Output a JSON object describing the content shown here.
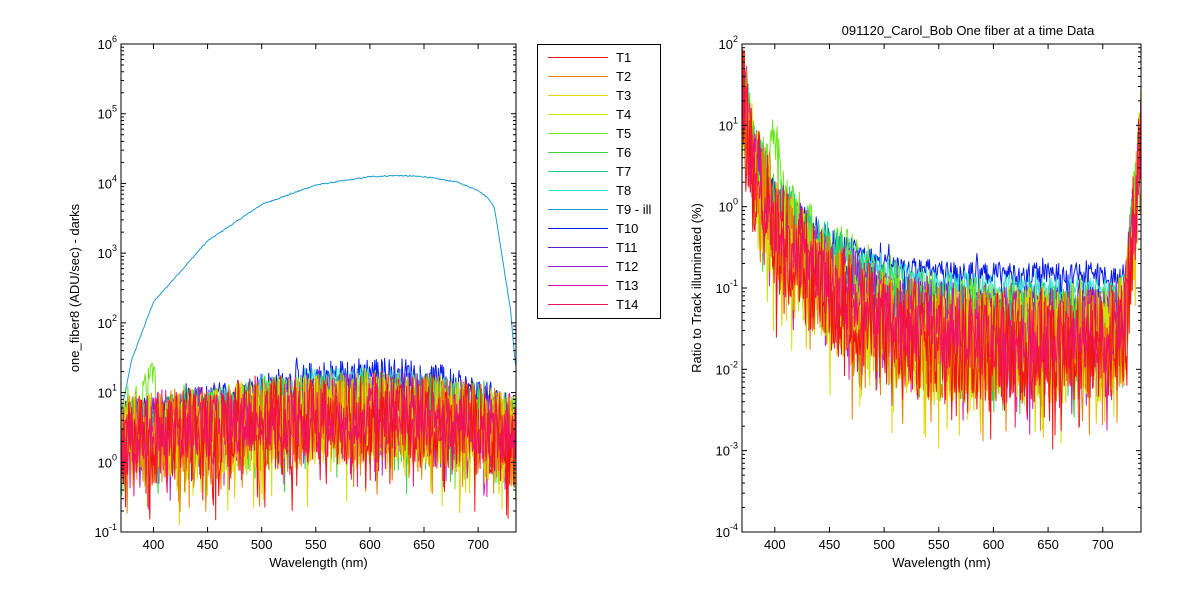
{
  "figure_title": "091120_Carol_Bob  One fiber at a time Data",
  "chart_data": [
    {
      "type": "line",
      "title": "",
      "xlabel": "Wavelength (nm)",
      "ylabel": "one_fiber8  (ADU/sec) - darks",
      "xlim": [
        370,
        735
      ],
      "ylim": [
        0.1,
        1000000
      ],
      "yscale": "log",
      "grid": false,
      "x_ticks": [
        400,
        450,
        500,
        550,
        600,
        650,
        700
      ],
      "y_tick_exponents": [
        -1,
        0,
        1,
        2,
        3,
        4,
        5,
        6
      ],
      "y_tick_base": "10",
      "legend": {
        "placement": "outside-right",
        "entries": [
          "T1",
          "T2",
          "T3",
          "T4",
          "T5",
          "T6",
          "T7",
          "T8",
          "T9 - ill",
          "T10",
          "T11",
          "T12",
          "T13",
          "T14"
        ]
      },
      "series": [
        {
          "name": "T9 - ill",
          "color": "#1f9bd0",
          "kind": "curve",
          "x": [
            370,
            380,
            400,
            450,
            500,
            550,
            600,
            625,
            650,
            680,
            700,
            710,
            715,
            720,
            730,
            735
          ],
          "values": [
            5,
            30,
            200,
            1500,
            5000,
            9500,
            12500,
            13000,
            12500,
            10500,
            8000,
            6000,
            4500,
            1500,
            150,
            20
          ]
        },
        {
          "name": "T10",
          "color": "#0a1ee6",
          "kind": "band",
          "x": [
            370,
            400,
            450,
            500,
            550,
            600,
            650,
            700,
            735
          ],
          "values": [
            5,
            5.5,
            8,
            12,
            17,
            20,
            18,
            10,
            5
          ],
          "spread": 0.5
        },
        {
          "name": "T8",
          "color": "#33e0d0",
          "kind": "band",
          "x": [
            370,
            400,
            450,
            500,
            550,
            600,
            650,
            700,
            735
          ],
          "values": [
            4,
            4.5,
            6.5,
            9.5,
            13,
            14,
            12,
            7,
            3
          ],
          "spread": 0.5
        },
        {
          "name": "T11",
          "color": "#5a1ed2",
          "kind": "band",
          "x": [
            370,
            400,
            450,
            500,
            550,
            600,
            650,
            700,
            735
          ],
          "values": [
            3,
            3.5,
            5,
            7,
            9,
            10,
            9,
            5,
            3
          ],
          "spread": 0.7
        },
        {
          "name": "T5",
          "color": "#6ee61e",
          "kind": "band",
          "x": [
            370,
            395,
            398,
            401,
            405,
            450,
            500,
            550,
            600,
            650,
            700,
            735
          ],
          "values": [
            3,
            12,
            60,
            15,
            4,
            5,
            6,
            7,
            7,
            6,
            4,
            2.5
          ],
          "spread": 0.9
        },
        {
          "name": "T7",
          "color": "#1ed282",
          "kind": "band",
          "x": [
            370,
            400,
            450,
            500,
            550,
            600,
            650,
            700,
            735
          ],
          "values": [
            3,
            3.5,
            4.5,
            6,
            7,
            8,
            7,
            5,
            3
          ],
          "spread": 0.9
        },
        {
          "name": "T12",
          "color": "#a01ed2",
          "kind": "band",
          "x": [
            370,
            400,
            450,
            500,
            550,
            600,
            650,
            700,
            735
          ],
          "values": [
            3,
            3,
            4,
            5,
            6,
            6.5,
            6,
            4,
            2.5
          ],
          "spread": 1.1
        },
        {
          "name": "T6",
          "color": "#3cd23c",
          "kind": "band",
          "x": [
            370,
            400,
            450,
            500,
            550,
            600,
            650,
            700,
            735
          ],
          "values": [
            2.5,
            2.8,
            3.5,
            4.5,
            5.5,
            6,
            5.5,
            4,
            2.5
          ],
          "spread": 1.2
        },
        {
          "name": "T13",
          "color": "#dc14b4",
          "kind": "band",
          "x": [
            370,
            400,
            450,
            500,
            550,
            600,
            650,
            700,
            735
          ],
          "values": [
            2.5,
            2.8,
            3.3,
            4,
            4.8,
            5,
            4.5,
            3.5,
            2.5
          ],
          "spread": 1.3
        },
        {
          "name": "T3",
          "color": "#e6d200",
          "kind": "band",
          "x": [
            370,
            400,
            450,
            500,
            550,
            600,
            650,
            700,
            735
          ],
          "values": [
            2,
            2.2,
            2.8,
            3.5,
            4,
            4.5,
            4,
            3,
            2
          ],
          "spread": 1.5
        },
        {
          "name": "T4",
          "color": "#c8e600",
          "kind": "band",
          "x": [
            370,
            400,
            450,
            500,
            550,
            600,
            650,
            700,
            735
          ],
          "values": [
            2,
            2.2,
            2.8,
            3.5,
            4,
            4.5,
            4,
            3,
            2
          ],
          "spread": 1.5
        },
        {
          "name": "T2",
          "color": "#e68200",
          "kind": "band",
          "x": [
            370,
            400,
            450,
            500,
            550,
            600,
            650,
            700,
            735
          ],
          "values": [
            2,
            2.2,
            2.8,
            3.5,
            4,
            4.5,
            4,
            3,
            2
          ],
          "spread": 1.5
        },
        {
          "name": "T1",
          "color": "#f01414",
          "kind": "band",
          "x": [
            370,
            400,
            450,
            500,
            550,
            600,
            650,
            700,
            735
          ],
          "values": [
            2,
            2.2,
            2.8,
            3.5,
            4,
            4.5,
            4,
            3,
            2
          ],
          "spread": 1.5
        },
        {
          "name": "T14",
          "color": "#f01464",
          "kind": "band",
          "x": [
            370,
            400,
            450,
            500,
            550,
            600,
            650,
            700,
            735
          ],
          "values": [
            2.5,
            2.8,
            3.3,
            4,
            4.8,
            5,
            4.5,
            3.5,
            2.5
          ],
          "spread": 1.0
        }
      ]
    },
    {
      "type": "line",
      "title": "091120_Carol_Bob  One fiber at a time Data",
      "xlabel": "Wavelength (nm)",
      "ylabel": "Ratio to Track illuminated (%)",
      "xlim": [
        370,
        735
      ],
      "ylim": [
        0.0001,
        100
      ],
      "yscale": "log",
      "grid": false,
      "x_ticks": [
        400,
        450,
        500,
        550,
        600,
        650,
        700
      ],
      "y_tick_exponents": [
        -4,
        -3,
        -2,
        -1,
        0,
        1,
        2
      ],
      "y_tick_base": "10",
      "series": [
        {
          "name": "T10",
          "color": "#0a1ee6",
          "kind": "band",
          "x": [
            372,
            380,
            400,
            450,
            500,
            550,
            600,
            650,
            700,
            715,
            720,
            728,
            735
          ],
          "values": [
            40,
            8,
            1.5,
            0.4,
            0.2,
            0.16,
            0.15,
            0.15,
            0.15,
            0.13,
            0.15,
            1,
            20
          ],
          "spread": 0.3
        },
        {
          "name": "T8",
          "color": "#33e0d0",
          "kind": "band",
          "x": [
            372,
            380,
            400,
            450,
            500,
            550,
            600,
            650,
            700,
            715,
            720,
            728,
            735
          ],
          "values": [
            35,
            7,
            1.3,
            0.35,
            0.17,
            0.12,
            0.11,
            0.1,
            0.1,
            0.09,
            0.12,
            0.8,
            15
          ],
          "spread": 0.3
        },
        {
          "name": "T11",
          "color": "#5a1ed2",
          "kind": "band",
          "x": [
            372,
            380,
            400,
            450,
            500,
            550,
            600,
            650,
            700,
            715,
            720,
            728,
            735
          ],
          "values": [
            30,
            5,
            1,
            0.25,
            0.1,
            0.07,
            0.07,
            0.065,
            0.06,
            0.06,
            0.08,
            0.6,
            12
          ],
          "spread": 0.5
        },
        {
          "name": "T5",
          "color": "#6ee61e",
          "kind": "band",
          "x": [
            372,
            380,
            395,
            399,
            403,
            410,
            450,
            500,
            550,
            600,
            650,
            700,
            720,
            735
          ],
          "values": [
            40,
            5,
            3,
            15,
            3,
            1,
            0.3,
            0.1,
            0.06,
            0.05,
            0.05,
            0.04,
            0.06,
            10
          ],
          "spread": 0.9
        },
        {
          "name": "T7",
          "color": "#1ed282",
          "kind": "band",
          "x": [
            372,
            380,
            400,
            450,
            500,
            550,
            600,
            650,
            700,
            720,
            735
          ],
          "values": [
            35,
            5,
            1,
            0.25,
            0.08,
            0.05,
            0.045,
            0.045,
            0.04,
            0.06,
            10
          ],
          "spread": 0.9
        },
        {
          "name": "T12",
          "color": "#a01ed2",
          "kind": "band",
          "x": [
            372,
            380,
            400,
            450,
            500,
            550,
            600,
            650,
            700,
            720,
            735
          ],
          "values": [
            30,
            4,
            0.8,
            0.15,
            0.06,
            0.04,
            0.035,
            0.035,
            0.03,
            0.05,
            9
          ],
          "spread": 1.1
        },
        {
          "name": "T6",
          "color": "#3cd23c",
          "kind": "band",
          "x": [
            372,
            380,
            400,
            450,
            500,
            550,
            600,
            650,
            700,
            720,
            735
          ],
          "values": [
            30,
            4,
            0.7,
            0.12,
            0.05,
            0.035,
            0.03,
            0.03,
            0.03,
            0.05,
            8
          ],
          "spread": 1.2
        },
        {
          "name": "T13",
          "color": "#dc14b4",
          "kind": "band",
          "x": [
            372,
            380,
            400,
            450,
            500,
            550,
            600,
            650,
            700,
            720,
            735
          ],
          "values": [
            25,
            3,
            0.6,
            0.1,
            0.04,
            0.03,
            0.025,
            0.025,
            0.025,
            0.04,
            8
          ],
          "spread": 1.3
        },
        {
          "name": "T3",
          "color": "#e6d200",
          "kind": "band",
          "x": [
            372,
            380,
            400,
            450,
            500,
            550,
            600,
            650,
            700,
            720,
            735
          ],
          "values": [
            20,
            3,
            0.5,
            0.08,
            0.03,
            0.02,
            0.02,
            0.02,
            0.02,
            0.03,
            6
          ],
          "spread": 1.6
        },
        {
          "name": "T4",
          "color": "#c8e600",
          "kind": "band",
          "x": [
            372,
            380,
            400,
            450,
            500,
            550,
            600,
            650,
            700,
            720,
            735
          ],
          "values": [
            20,
            3,
            0.5,
            0.08,
            0.03,
            0.02,
            0.02,
            0.02,
            0.02,
            0.03,
            6
          ],
          "spread": 1.6
        },
        {
          "name": "T2",
          "color": "#e68200",
          "kind": "band",
          "x": [
            372,
            380,
            400,
            450,
            500,
            550,
            600,
            650,
            700,
            720,
            735
          ],
          "values": [
            20,
            3,
            0.5,
            0.08,
            0.03,
            0.02,
            0.02,
            0.02,
            0.02,
            0.03,
            6
          ],
          "spread": 1.6
        },
        {
          "name": "T1",
          "color": "#f01414",
          "kind": "band",
          "x": [
            372,
            380,
            400,
            450,
            500,
            550,
            600,
            650,
            700,
            720,
            735
          ],
          "values": [
            20,
            3,
            0.5,
            0.08,
            0.03,
            0.02,
            0.02,
            0.02,
            0.02,
            0.03,
            6
          ],
          "spread": 1.6
        },
        {
          "name": "T14",
          "color": "#f01464",
          "kind": "band",
          "x": [
            372,
            380,
            400,
            450,
            500,
            550,
            600,
            650,
            700,
            720,
            735
          ],
          "values": [
            25,
            3,
            0.6,
            0.1,
            0.04,
            0.03,
            0.025,
            0.025,
            0.025,
            0.04,
            8
          ],
          "spread": 1.0
        }
      ]
    }
  ]
}
